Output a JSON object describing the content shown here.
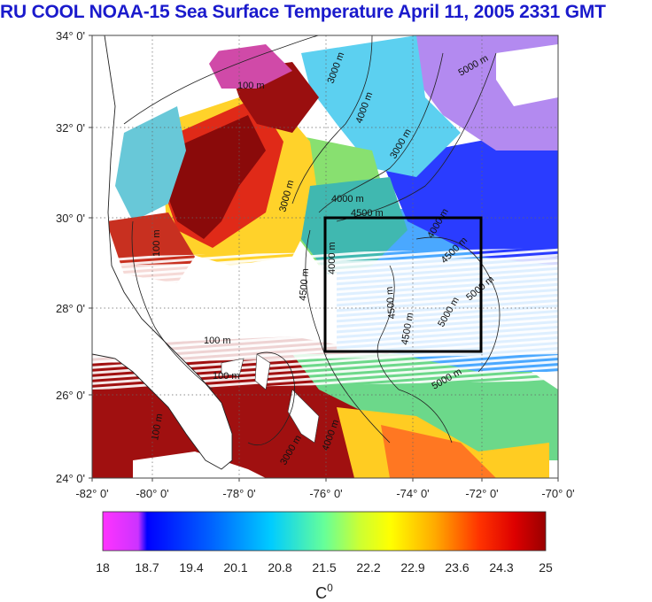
{
  "title": "RU COOL  NOAA-15 Sea Surface Temperature April 11, 2005 2331 GMT",
  "latitude_ticks": [
    "34° 0'",
    "32° 0'",
    "30° 0'",
    "28° 0'",
    "26° 0'",
    "24° 0'"
  ],
  "longitude_ticks": [
    "-82° 0'",
    "-80° 0'",
    "-78° 0'",
    "-76° 0'",
    "-74° 0'",
    "-72° 0'",
    "-70° 0'"
  ],
  "contour_labels": [
    "100 m",
    "3000 m",
    "3000 m",
    "4000 m",
    "4000 m",
    "4500 m",
    "4000 m",
    "4500 m",
    "5000 m",
    "3000 m",
    "100 m",
    "4000 m",
    "4500 m",
    "4500 m",
    "5000 m",
    "4500 m",
    "5000 m",
    "100 m",
    "100 m",
    "3000 m",
    "5000 m",
    "100 m",
    "4000 m"
  ],
  "colorbar": {
    "tick_labels": [
      "18",
      "18.7",
      "19.4",
      "20.1",
      "20.8",
      "21.5",
      "22.2",
      "22.9",
      "23.6",
      "24.3",
      "25"
    ],
    "min": 18,
    "max": 25,
    "unit_label": "C",
    "unit_superscript": "0",
    "colors": [
      "#ff33ff",
      "#cc33ff",
      "#0000ff",
      "#0066ff",
      "#00ccff",
      "#33ffcc",
      "#66ff66",
      "#ccff33",
      "#ffff00",
      "#ffaa00",
      "#ff5500",
      "#ee0000",
      "#990000"
    ]
  },
  "colors": {
    "title": "#1a1acc",
    "land": "#ffffff",
    "box": "#000000"
  }
}
